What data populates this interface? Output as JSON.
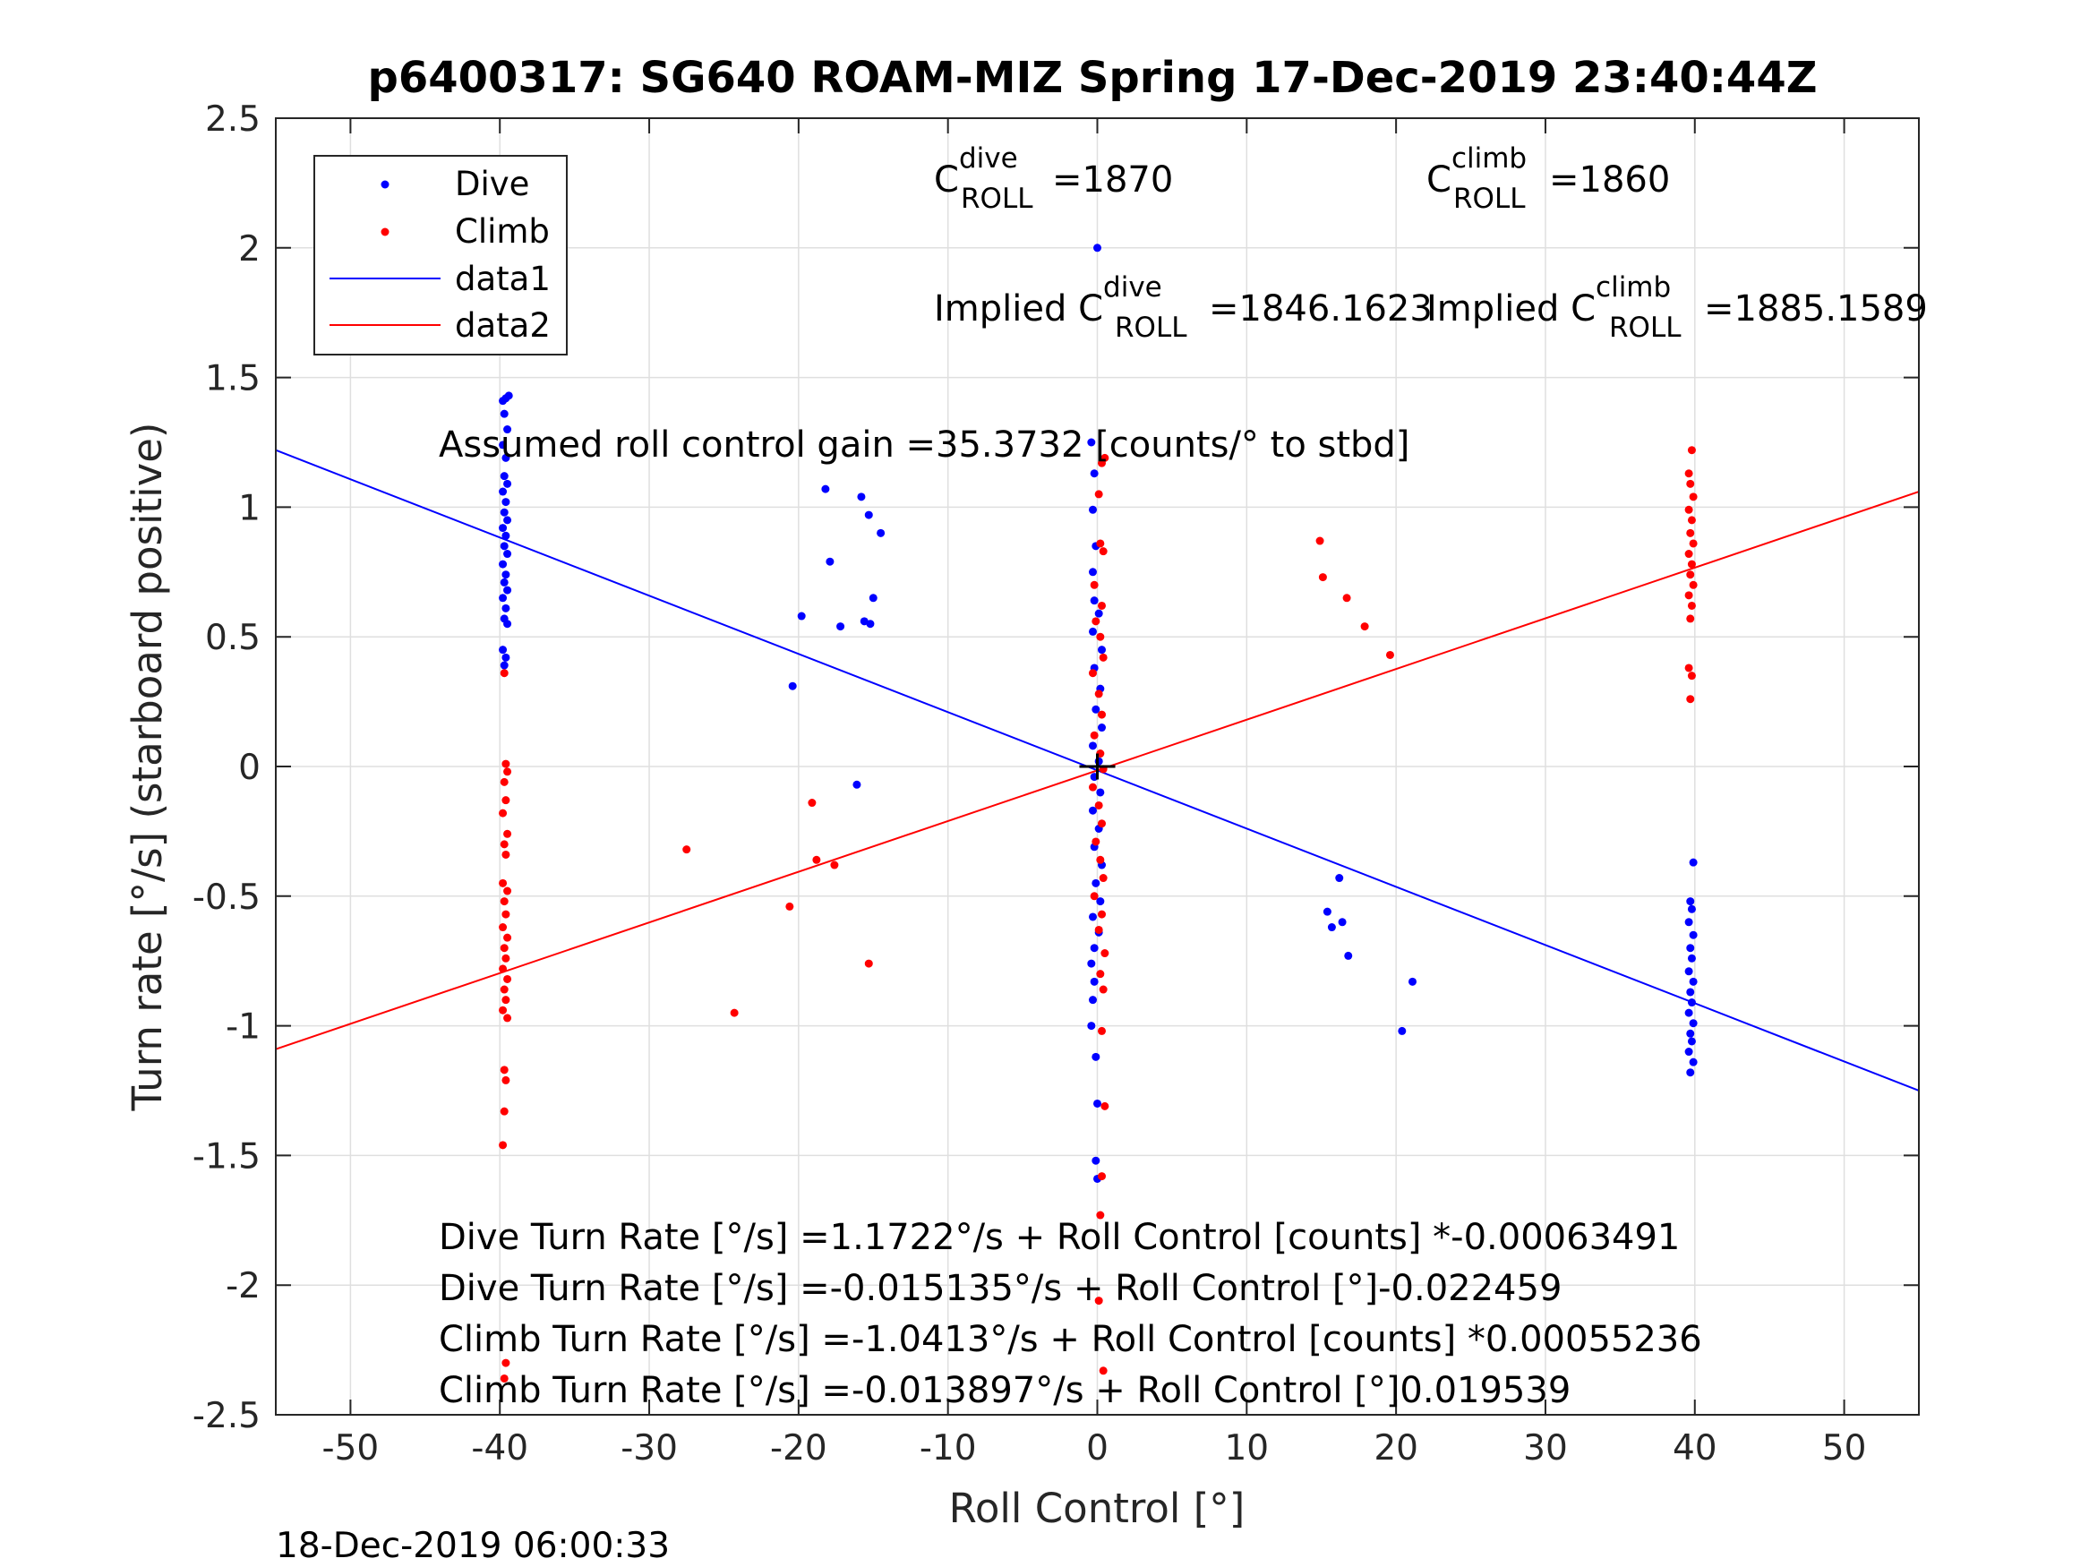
{
  "chart_data": {
    "type": "scatter",
    "title": "p6400317: SG640 ROAM-MIZ Spring 17-Dec-2019 23:40:44Z",
    "xlabel": "Roll Control [°]",
    "ylabel": "Turn rate [°/s] (starboard positive)",
    "xlim": [
      -55,
      55
    ],
    "ylim": [
      -2.5,
      2.5
    ],
    "xticks": [
      -50,
      -40,
      -30,
      -20,
      -10,
      0,
      10,
      20,
      30,
      40,
      50
    ],
    "yticks": [
      -2.5,
      -2,
      -1.5,
      -1,
      -0.5,
      0,
      0.5,
      1,
      1.5,
      2,
      2.5
    ],
    "xtick_labels": [
      "-50",
      "-40",
      "-30",
      "-20",
      "-10",
      "0",
      "10",
      "20",
      "30",
      "40",
      "50"
    ],
    "ytick_labels": [
      "-2.5",
      "-2",
      "-1.5",
      "-1",
      "-0.5",
      "0",
      "0.5",
      "1",
      "1.5",
      "2",
      "2.5"
    ],
    "grid": true,
    "legend_position": "top-left",
    "legend": [
      "Dive",
      "Climb",
      "data1",
      "data2"
    ],
    "colors": {
      "dive": "#0000ff",
      "climb": "#ff0000",
      "axes": "#262626",
      "grid": "#dfdfdf"
    },
    "series": [
      {
        "name": "Dive",
        "marker": "point",
        "points": [
          [
            -39.8,
            1.41
          ],
          [
            -39.6,
            1.42
          ],
          [
            -39.4,
            1.43
          ],
          [
            -39.7,
            1.36
          ],
          [
            -39.5,
            1.3
          ],
          [
            -39.8,
            1.24
          ],
          [
            -39.6,
            1.19
          ],
          [
            -39.7,
            1.12
          ],
          [
            -39.5,
            1.09
          ],
          [
            -39.8,
            1.06
          ],
          [
            -39.6,
            1.02
          ],
          [
            -39.7,
            0.98
          ],
          [
            -39.5,
            0.95
          ],
          [
            -39.8,
            0.92
          ],
          [
            -39.6,
            0.89
          ],
          [
            -39.7,
            0.85
          ],
          [
            -39.5,
            0.82
          ],
          [
            -39.8,
            0.78
          ],
          [
            -39.6,
            0.74
          ],
          [
            -39.7,
            0.71
          ],
          [
            -39.5,
            0.68
          ],
          [
            -39.8,
            0.65
          ],
          [
            -39.6,
            0.61
          ],
          [
            -39.7,
            0.57
          ],
          [
            -39.5,
            0.55
          ],
          [
            -39.8,
            0.45
          ],
          [
            -39.6,
            0.42
          ],
          [
            -39.7,
            0.39
          ],
          [
            -18.2,
            1.07
          ],
          [
            -15.8,
            1.04
          ],
          [
            -15.3,
            0.97
          ],
          [
            -14.5,
            0.9
          ],
          [
            -17.9,
            0.79
          ],
          [
            -15.0,
            0.65
          ],
          [
            -19.8,
            0.58
          ],
          [
            -17.2,
            0.54
          ],
          [
            -15.6,
            0.56
          ],
          [
            -15.2,
            0.55
          ],
          [
            -20.4,
            0.31
          ],
          [
            -16.1,
            -0.07
          ],
          [
            -0.4,
            1.25
          ],
          [
            -0.2,
            1.13
          ],
          [
            -0.3,
            0.99
          ],
          [
            -0.1,
            0.85
          ],
          [
            -0.3,
            0.75
          ],
          [
            -0.2,
            0.64
          ],
          [
            0.1,
            0.59
          ],
          [
            -0.3,
            0.52
          ],
          [
            0.3,
            0.45
          ],
          [
            -0.2,
            0.38
          ],
          [
            0.2,
            0.3
          ],
          [
            -0.1,
            0.22
          ],
          [
            0.3,
            0.15
          ],
          [
            -0.3,
            0.08
          ],
          [
            0.1,
            0.02
          ],
          [
            -0.2,
            -0.04
          ],
          [
            0.2,
            -0.1
          ],
          [
            -0.3,
            -0.17
          ],
          [
            0.1,
            -0.24
          ],
          [
            -0.2,
            -0.31
          ],
          [
            0.3,
            -0.38
          ],
          [
            -0.1,
            -0.45
          ],
          [
            0.2,
            -0.52
          ],
          [
            -0.3,
            -0.58
          ],
          [
            0.1,
            -0.64
          ],
          [
            -0.2,
            -0.7
          ],
          [
            -0.4,
            -0.76
          ],
          [
            -0.2,
            -0.83
          ],
          [
            -0.3,
            -0.9
          ],
          [
            -0.4,
            -1.0
          ],
          [
            -0.1,
            -1.12
          ],
          [
            0.0,
            -1.3
          ],
          [
            -0.1,
            -1.52
          ],
          [
            0.0,
            -1.59
          ],
          [
            0.0,
            2.0
          ],
          [
            16.2,
            -0.43
          ],
          [
            15.4,
            -0.56
          ],
          [
            15.7,
            -0.62
          ],
          [
            16.4,
            -0.6
          ],
          [
            16.8,
            -0.73
          ],
          [
            21.1,
            -0.83
          ],
          [
            20.4,
            -1.02
          ],
          [
            39.9,
            -0.37
          ],
          [
            39.7,
            -0.52
          ],
          [
            39.8,
            -0.55
          ],
          [
            39.6,
            -0.6
          ],
          [
            39.9,
            -0.65
          ],
          [
            39.7,
            -0.7
          ],
          [
            39.8,
            -0.74
          ],
          [
            39.6,
            -0.79
          ],
          [
            39.9,
            -0.83
          ],
          [
            39.7,
            -0.87
          ],
          [
            39.8,
            -0.91
          ],
          [
            39.6,
            -0.95
          ],
          [
            39.9,
            -0.99
          ],
          [
            39.7,
            -1.03
          ],
          [
            39.8,
            -1.06
          ],
          [
            39.6,
            -1.1
          ],
          [
            39.9,
            -1.14
          ],
          [
            39.7,
            -1.18
          ]
        ]
      },
      {
        "name": "Climb",
        "marker": "point",
        "points": [
          [
            -39.7,
            0.36
          ],
          [
            -39.6,
            0.01
          ],
          [
            -39.5,
            -0.02
          ],
          [
            -39.7,
            -0.06
          ],
          [
            -39.6,
            -0.13
          ],
          [
            -39.8,
            -0.18
          ],
          [
            -39.5,
            -0.26
          ],
          [
            -39.7,
            -0.3
          ],
          [
            -39.6,
            -0.34
          ],
          [
            -39.8,
            -0.45
          ],
          [
            -39.5,
            -0.48
          ],
          [
            -39.7,
            -0.52
          ],
          [
            -39.6,
            -0.57
          ],
          [
            -39.8,
            -0.62
          ],
          [
            -39.5,
            -0.66
          ],
          [
            -39.7,
            -0.7
          ],
          [
            -39.6,
            -0.74
          ],
          [
            -39.8,
            -0.78
          ],
          [
            -39.5,
            -0.82
          ],
          [
            -39.7,
            -0.86
          ],
          [
            -39.6,
            -0.9
          ],
          [
            -39.8,
            -0.94
          ],
          [
            -39.5,
            -0.97
          ],
          [
            -39.7,
            -1.17
          ],
          [
            -39.6,
            -1.21
          ],
          [
            -39.7,
            -1.33
          ],
          [
            -39.8,
            -1.46
          ],
          [
            -39.6,
            -2.3
          ],
          [
            -39.7,
            -2.36
          ],
          [
            -27.5,
            -0.32
          ],
          [
            -24.3,
            -0.95
          ],
          [
            -20.6,
            -0.54
          ],
          [
            -19.1,
            -0.14
          ],
          [
            -18.8,
            -0.36
          ],
          [
            -17.6,
            -0.38
          ],
          [
            -15.3,
            -0.76
          ],
          [
            0.3,
            1.17
          ],
          [
            0.5,
            1.19
          ],
          [
            0.1,
            1.05
          ],
          [
            0.2,
            0.86
          ],
          [
            0.4,
            0.83
          ],
          [
            -0.2,
            0.7
          ],
          [
            0.3,
            0.62
          ],
          [
            -0.1,
            0.56
          ],
          [
            0.2,
            0.5
          ],
          [
            0.4,
            0.42
          ],
          [
            -0.3,
            0.36
          ],
          [
            0.1,
            0.28
          ],
          [
            0.3,
            0.2
          ],
          [
            -0.2,
            0.12
          ],
          [
            0.2,
            0.05
          ],
          [
            0.4,
            -0.01
          ],
          [
            -0.3,
            -0.08
          ],
          [
            0.1,
            -0.15
          ],
          [
            0.3,
            -0.22
          ],
          [
            -0.1,
            -0.29
          ],
          [
            0.2,
            -0.36
          ],
          [
            0.4,
            -0.43
          ],
          [
            -0.2,
            -0.5
          ],
          [
            0.3,
            -0.57
          ],
          [
            0.1,
            -0.63
          ],
          [
            0.5,
            -0.72
          ],
          [
            0.2,
            -0.8
          ],
          [
            0.4,
            -0.86
          ],
          [
            0.3,
            -1.02
          ],
          [
            0.5,
            -1.31
          ],
          [
            0.3,
            -1.58
          ],
          [
            0.2,
            -1.73
          ],
          [
            0.1,
            -2.06
          ],
          [
            0.4,
            -2.33
          ],
          [
            14.9,
            0.87
          ],
          [
            15.1,
            0.73
          ],
          [
            16.7,
            0.65
          ],
          [
            17.9,
            0.54
          ],
          [
            19.6,
            0.43
          ],
          [
            39.8,
            1.22
          ],
          [
            39.6,
            1.13
          ],
          [
            39.7,
            1.09
          ],
          [
            39.9,
            1.04
          ],
          [
            39.6,
            0.99
          ],
          [
            39.8,
            0.95
          ],
          [
            39.7,
            0.9
          ],
          [
            39.9,
            0.86
          ],
          [
            39.6,
            0.82
          ],
          [
            39.8,
            0.78
          ],
          [
            39.7,
            0.74
          ],
          [
            39.9,
            0.7
          ],
          [
            39.6,
            0.66
          ],
          [
            39.8,
            0.62
          ],
          [
            39.7,
            0.57
          ],
          [
            39.6,
            0.38
          ],
          [
            39.8,
            0.35
          ],
          [
            39.7,
            0.26
          ]
        ]
      },
      {
        "name": "data1",
        "type": "line",
        "x": [
          -55,
          55
        ],
        "y": [
          1.22,
          -1.25
        ]
      },
      {
        "name": "data2",
        "type": "line",
        "x": [
          -55,
          55
        ],
        "y": [
          -1.09,
          1.06
        ]
      }
    ],
    "annotations": {
      "c_dive": {
        "base": "C",
        "sup": "dive",
        "sub": "ROLL",
        "value": "=1870"
      },
      "c_climb": {
        "base": "C",
        "sup": "climb",
        "sub": "ROLL",
        "value": "=1860"
      },
      "implied_dive": {
        "prefix": "Implied C",
        "sup": "dive",
        "sub": "ROLL",
        "value": "=1846.1623"
      },
      "implied_climb": {
        "prefix": "Implied C",
        "sup": "climb",
        "sub": "ROLL",
        "value": "=1885.1589"
      },
      "gain": "Assumed roll control gain =35.3732 [counts/° to stbd]",
      "fits": [
        "Dive Turn Rate [°/s] =1.1722°/s + Roll Control [counts] *-0.00063491",
        "Dive Turn Rate [°/s] =-0.015135°/s + Roll Control [°]-0.022459",
        "Climb Turn Rate [°/s] =-1.0413°/s + Roll Control [counts] *0.00055236",
        "Climb Turn Rate [°/s] =-0.013897°/s + Roll Control [°]0.019539"
      ]
    }
  },
  "timestamp": "18-Dec-2019 06:00:33"
}
